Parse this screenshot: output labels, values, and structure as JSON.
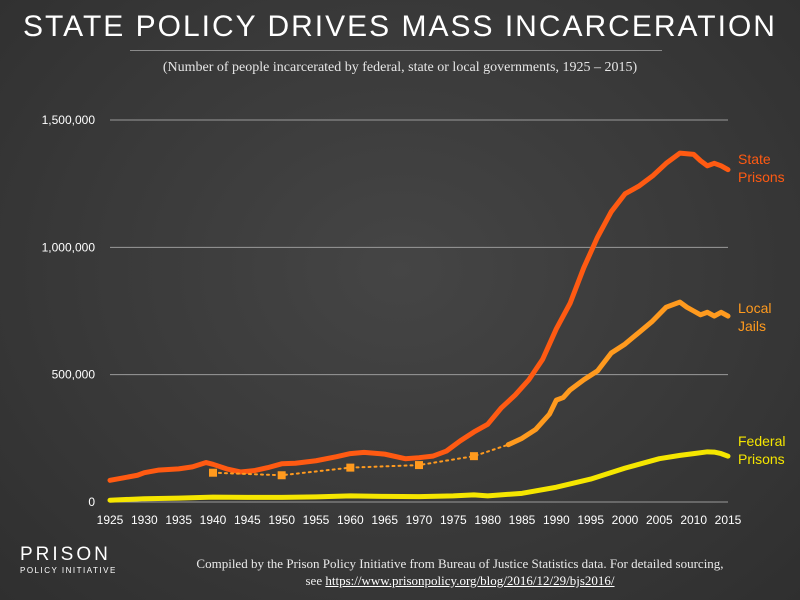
{
  "title": "STATE POLICY DRIVES MASS INCARCERATION",
  "subtitle": "(Number of people incarcerated by federal, state or local governments, 1925 – 2015)",
  "logo": {
    "top": "PRISON",
    "bottom": "POLICY INITIATIVE"
  },
  "footnote": {
    "line1": "Compiled by the Prison Policy Initiative from Bureau of Justice Statistics data. For detailed sourcing,",
    "see": "see",
    "url": "https://www.prisonpolicy.org/blog/2016/12/29/bjs2016/"
  },
  "colors": {
    "state": "#ff5a12",
    "jails": "#ff9a1e",
    "federal": "#f5e600",
    "grid": "#9a9a9a"
  },
  "chart_data": {
    "type": "line",
    "title": "STATE POLICY DRIVES MASS INCARCERATION",
    "xlabel": "",
    "ylabel": "",
    "xlim": [
      1925,
      2015
    ],
    "ylim": [
      0,
      1500000
    ],
    "grid": true,
    "yticks": [
      0,
      500000,
      1000000,
      1500000
    ],
    "ytick_labels": [
      "0",
      "500,000",
      "1,000,000",
      "1,500,000"
    ],
    "xticks": [
      1925,
      1930,
      1935,
      1940,
      1945,
      1950,
      1955,
      1960,
      1965,
      1970,
      1975,
      1980,
      1985,
      1990,
      1995,
      2000,
      2005,
      2010,
      2015
    ],
    "xtick_labels": [
      "1925",
      "1930",
      "1935",
      "1940",
      "1945",
      "1950",
      "1955",
      "1960",
      "1965",
      "1970",
      "1975",
      "1980",
      "1985",
      "1990",
      "1995",
      "2000",
      "2005",
      "2010",
      "2015"
    ],
    "series": [
      {
        "name": "State Prisons",
        "label_lines": [
          "State",
          "Prisons"
        ],
        "color": "#ff5a12",
        "x": [
          1925,
          1927,
          1929,
          1930,
          1932,
          1935,
          1937,
          1939,
          1940,
          1942,
          1944,
          1946,
          1948,
          1950,
          1952,
          1955,
          1958,
          1960,
          1962,
          1965,
          1968,
          1970,
          1972,
          1974,
          1976,
          1978,
          1980,
          1982,
          1984,
          1986,
          1988,
          1990,
          1992,
          1994,
          1996,
          1998,
          2000,
          2002,
          2004,
          2006,
          2008,
          2010,
          2011,
          2012,
          2013,
          2014,
          2015
        ],
        "values": [
          85000,
          95000,
          105000,
          115000,
          125000,
          130000,
          138000,
          155000,
          148000,
          130000,
          118000,
          123000,
          135000,
          150000,
          152000,
          162000,
          178000,
          190000,
          195000,
          188000,
          170000,
          174000,
          180000,
          200000,
          240000,
          275000,
          305000,
          370000,
          420000,
          480000,
          560000,
          680000,
          780000,
          920000,
          1040000,
          1140000,
          1210000,
          1240000,
          1280000,
          1330000,
          1370000,
          1365000,
          1340000,
          1320000,
          1330000,
          1320000,
          1305000
        ]
      },
      {
        "name": "Local Jails",
        "label_lines": [
          "Local",
          "Jails"
        ],
        "color": "#ff9a1e",
        "x": [
          1940,
          1950,
          1960,
          1970,
          1978,
          1983,
          1985,
          1987,
          1989,
          1990,
          1991,
          1992,
          1994,
          1996,
          1998,
          2000,
          2002,
          2004,
          2006,
          2008,
          2009,
          2010,
          2011,
          2012,
          2013,
          2014,
          2015
        ],
        "values": [
          115000,
          105000,
          135000,
          145000,
          180000,
          225000,
          250000,
          285000,
          345000,
          400000,
          410000,
          440000,
          480000,
          515000,
          585000,
          620000,
          665000,
          710000,
          765000,
          785000,
          765000,
          750000,
          735000,
          745000,
          730000,
          745000,
          730000
        ],
        "observed_points_x": [
          1940,
          1950,
          1960,
          1970,
          1978
        ],
        "observed_points_values": [
          115000,
          105000,
          135000,
          145000,
          180000
        ],
        "dotted_until_x": 1983
      },
      {
        "name": "Federal Prisons",
        "label_lines": [
          "Federal",
          "Prisons"
        ],
        "color": "#f5e600",
        "x": [
          1925,
          1930,
          1935,
          1940,
          1945,
          1950,
          1955,
          1960,
          1965,
          1970,
          1975,
          1978,
          1980,
          1985,
          1990,
          1995,
          2000,
          2005,
          2008,
          2010,
          2012,
          2013,
          2014,
          2015
        ],
        "values": [
          7000,
          13000,
          15000,
          19000,
          18000,
          18000,
          20000,
          24000,
          22000,
          21000,
          24000,
          28000,
          24000,
          34000,
          58000,
          90000,
          133000,
          170000,
          183000,
          190000,
          197000,
          196000,
          190000,
          180000
        ]
      }
    ]
  }
}
